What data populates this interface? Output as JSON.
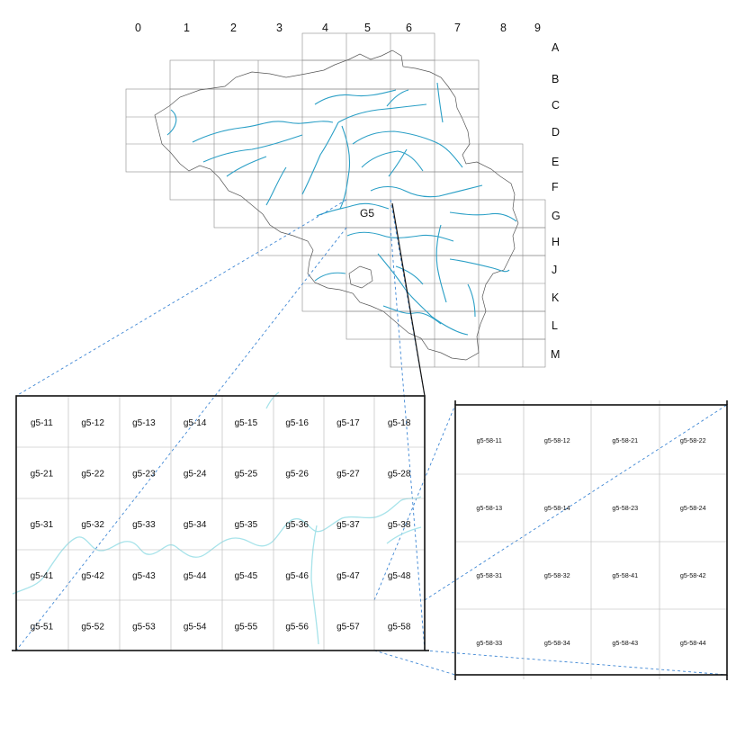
{
  "overview": {
    "columns": [
      "0",
      "1",
      "2",
      "3",
      "4",
      "5",
      "6",
      "7",
      "8",
      "9"
    ],
    "rows": [
      "A",
      "B",
      "C",
      "D",
      "E",
      "F",
      "G",
      "H",
      "J",
      "K",
      "L",
      "M"
    ],
    "selected_tile": "G5",
    "border_color": "#555555",
    "river_color": "#2a9fc6"
  },
  "detail_g5": {
    "rows": [
      [
        "g5-11",
        "g5-12",
        "g5-13",
        "g5-14",
        "g5-15",
        "g5-16",
        "g5-17",
        "g5-18"
      ],
      [
        "g5-21",
        "g5-22",
        "g5-23",
        "g5-24",
        "g5-25",
        "g5-26",
        "g5-27",
        "g5-28"
      ],
      [
        "g5-31",
        "g5-32",
        "g5-33",
        "g5-34",
        "g5-35",
        "g5-36",
        "g5-37",
        "g5-38"
      ],
      [
        "g5-41",
        "g5-42",
        "g5-43",
        "g5-44",
        "g5-45",
        "g5-46",
        "g5-47",
        "g5-48"
      ],
      [
        "g5-51",
        "g5-52",
        "g5-53",
        "g5-54",
        "g5-55",
        "g5-56",
        "g5-57",
        "g5-58"
      ]
    ],
    "river_color": "#a7e3ea"
  },
  "detail_g5_58": {
    "rows": [
      [
        "g5-58-11",
        "g5-58-12",
        "g5-58-21",
        "g5-58-22"
      ],
      [
        "g5-58-13",
        "g5-58-14",
        "g5-58-23",
        "g5-58-24"
      ],
      [
        "g5-58-31",
        "g5-58-32",
        "g5-58-41",
        "g5-58-42"
      ],
      [
        "g5-58-33",
        "g5-58-34",
        "g5-58-43",
        "g5-58-44"
      ]
    ]
  },
  "connector_color": "#3d86d4"
}
